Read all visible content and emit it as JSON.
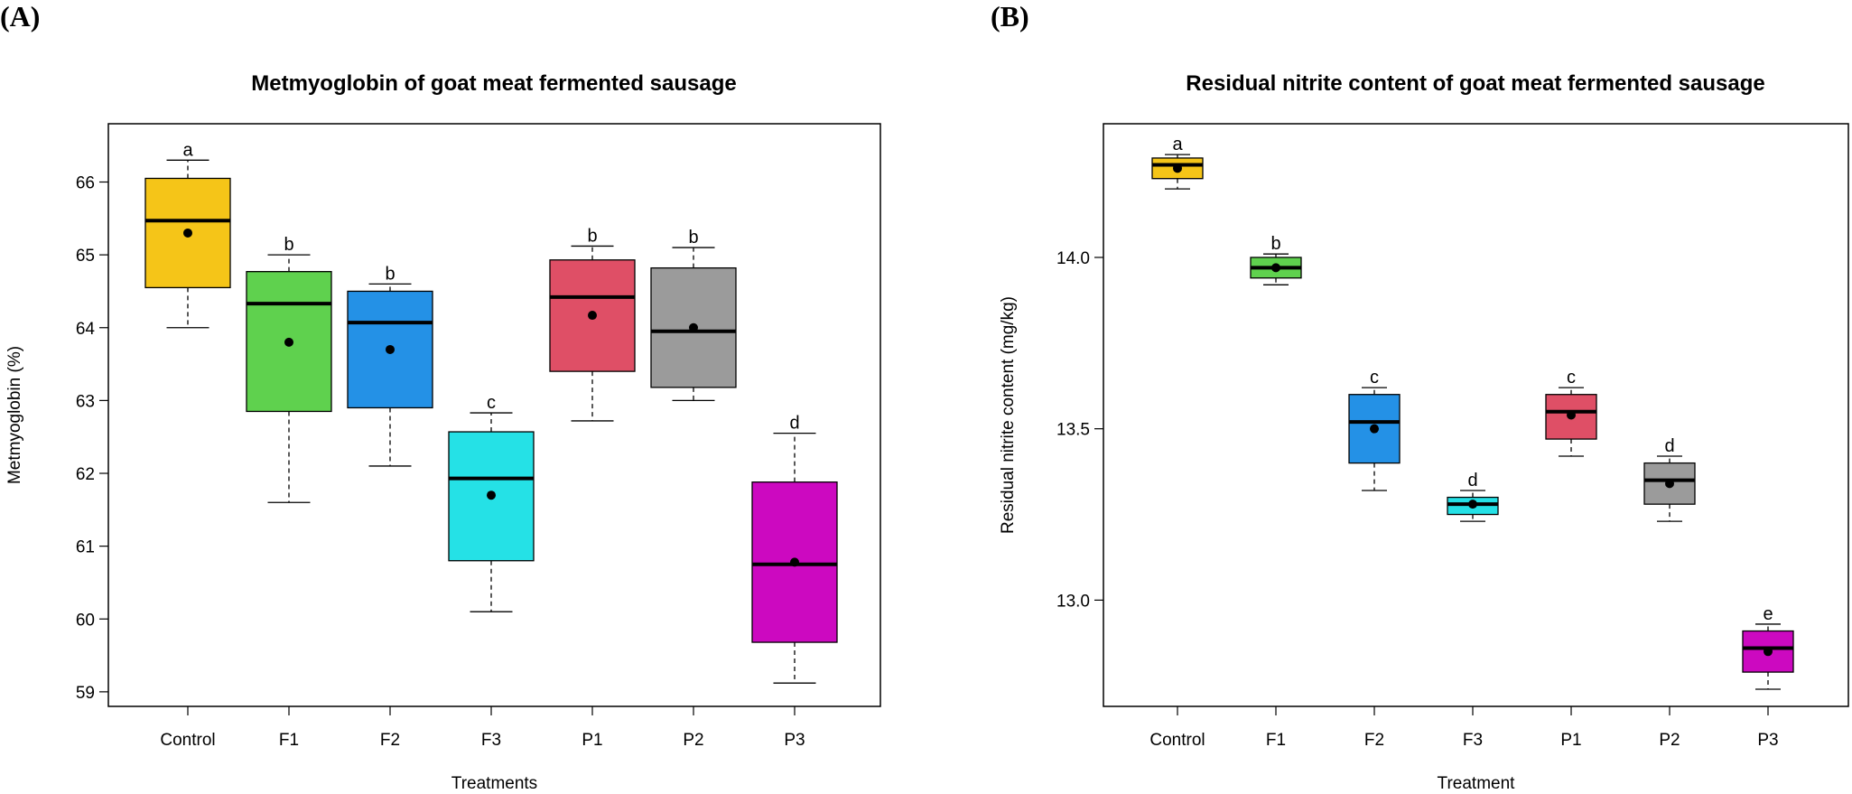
{
  "panel_labels": [
    "(A)",
    "(B)"
  ],
  "chart_data": [
    {
      "type": "boxplot",
      "title": "Metmyoglobin of goat meat fermented sausage",
      "xlabel": "Treatments",
      "ylabel": "Metmyoglobin (%)",
      "ylim": [
        58.8,
        66.8
      ],
      "yticks": [
        59,
        60,
        61,
        62,
        63,
        64,
        65,
        66
      ],
      "ytick_labels": [
        "59",
        "60",
        "61",
        "62",
        "63",
        "64",
        "65",
        "66"
      ],
      "categories": [
        "Control",
        "F1",
        "F2",
        "F3",
        "P1",
        "P2",
        "P3"
      ],
      "colors": [
        "#F5C518",
        "#5FD14E",
        "#2491E6",
        "#25E1E6",
        "#DF4F66",
        "#9B9B9B",
        "#CC09C0"
      ],
      "whisker_low": [
        64.0,
        61.6,
        62.1,
        60.1,
        62.72,
        63.0,
        59.12
      ],
      "q1": [
        64.55,
        62.85,
        62.9,
        60.8,
        63.4,
        63.18,
        59.68
      ],
      "median": [
        65.47,
        64.33,
        64.07,
        61.93,
        64.42,
        63.95,
        60.75
      ],
      "q3": [
        66.05,
        64.77,
        64.5,
        62.57,
        64.93,
        64.82,
        61.88
      ],
      "whisker_high": [
        66.3,
        65.0,
        64.6,
        62.83,
        65.12,
        65.1,
        62.55
      ],
      "mean": [
        65.3,
        63.8,
        63.7,
        61.7,
        64.17,
        64.0,
        60.78
      ],
      "group_letters": [
        "a",
        "b",
        "b",
        "c",
        "b",
        "b",
        "d"
      ]
    },
    {
      "type": "boxplot",
      "title": "Residual nitrite content of goat meat fermented sausage",
      "xlabel": "Treatment",
      "ylabel": "Residual nitrite content (mg/kg)",
      "ylim": [
        12.69,
        14.39
      ],
      "yticks": [
        13.0,
        13.5,
        14.0
      ],
      "ytick_labels": [
        "13.0",
        "13.5",
        "14.0"
      ],
      "categories": [
        "Control",
        "F1",
        "F2",
        "F3",
        "P1",
        "P2",
        "P3"
      ],
      "colors": [
        "#F5C518",
        "#5FD14E",
        "#2491E6",
        "#25E1E6",
        "#DF4F66",
        "#9B9B9B",
        "#CC09C0"
      ],
      "whisker_low": [
        14.2,
        13.92,
        13.32,
        13.23,
        13.42,
        13.23,
        12.74
      ],
      "q1": [
        14.23,
        13.94,
        13.4,
        13.25,
        13.47,
        13.28,
        12.79
      ],
      "median": [
        14.27,
        13.97,
        13.52,
        13.28,
        13.55,
        13.35,
        12.86
      ],
      "q3": [
        14.29,
        14.0,
        13.6,
        13.3,
        13.6,
        13.4,
        12.91
      ],
      "whisker_high": [
        14.3,
        14.01,
        13.62,
        13.32,
        13.62,
        13.42,
        12.93
      ],
      "mean": [
        14.26,
        13.97,
        13.5,
        13.28,
        13.54,
        13.34,
        12.85
      ],
      "group_letters": [
        "a",
        "b",
        "c",
        "d",
        "c",
        "d",
        "e"
      ]
    }
  ]
}
